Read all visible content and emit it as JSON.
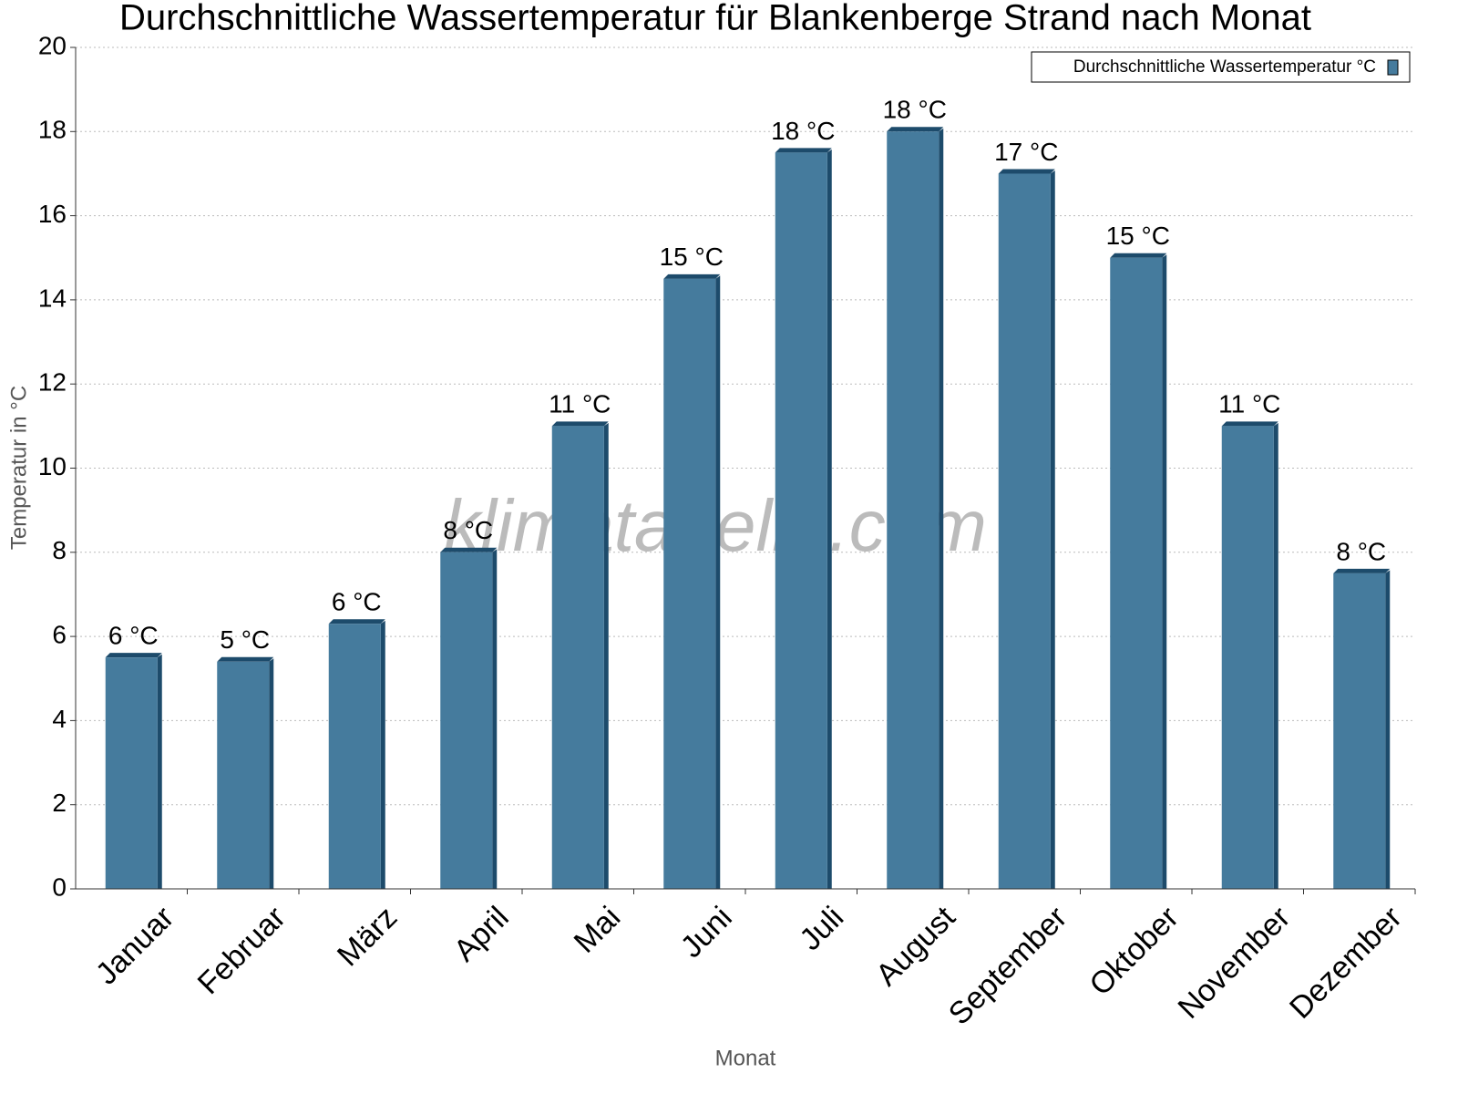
{
  "chart_data": {
    "type": "bar",
    "title": "Durchschnittliche Wassertemperatur für Blankenberge Strand nach Monat",
    "x_label": "Monat",
    "y_label": "Temperatur in °C",
    "watermark": "klimatabelle.com",
    "categories": [
      "Januar",
      "Februar",
      "März",
      "April",
      "Mai",
      "Juni",
      "Juli",
      "August",
      "September",
      "Oktober",
      "November",
      "Dezember"
    ],
    "series": [
      {
        "name": "Durchschnittliche Wassertemperatur °C",
        "color": "#457b9d",
        "values": [
          5.5,
          5.4,
          6.3,
          8.0,
          11.0,
          14.5,
          17.5,
          18.0,
          17.0,
          15.0,
          11.0,
          7.5
        ],
        "value_labels": [
          "6 °C",
          "5 °C",
          "6 °C",
          "8 °C",
          "11 °C",
          "15 °C",
          "18 °C",
          "18 °C",
          "17 °C",
          "15 °C",
          "11 °C",
          "8 °C"
        ]
      }
    ],
    "ylim": [
      0,
      20
    ],
    "yticks": [
      0,
      2,
      4,
      6,
      8,
      10,
      12,
      14,
      16,
      18,
      20
    ],
    "grid": true,
    "legend": "upper right"
  }
}
